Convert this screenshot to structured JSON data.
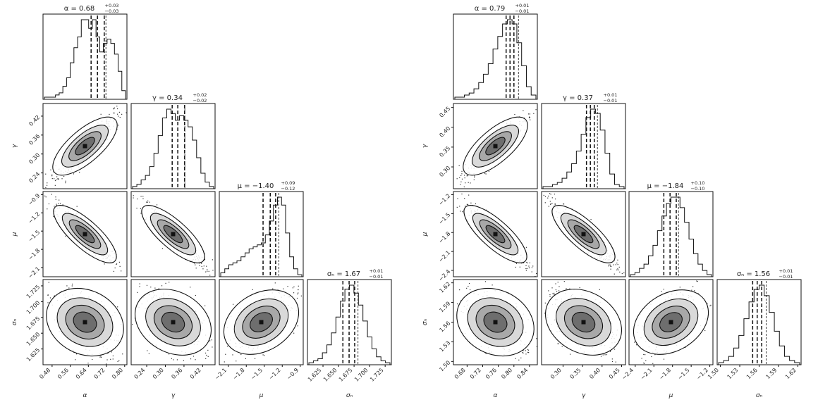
{
  "chart_data": [
    {
      "type": "corner",
      "name": "left",
      "params": [
        {
          "label": "α",
          "range": [
            0.44,
            0.81
          ],
          "ticks": [
            0.48,
            0.56,
            0.64,
            0.72,
            0.8
          ],
          "tick_labels": [
            "0.48",
            "0.56",
            "0.64",
            "0.72",
            "0.80"
          ],
          "median": 0.68,
          "quantiles": [
            0.652,
            0.68,
            0.71
          ],
          "title": {
            "text": "α = 0.68",
            "sup": "+0.03",
            "sub": "−0.03"
          },
          "hist": [
            1,
            1,
            1,
            2,
            3,
            6,
            10,
            17,
            24,
            29,
            37,
            37,
            33,
            37,
            29,
            22,
            26,
            28,
            26,
            21,
            13,
            4
          ]
        },
        {
          "label": "γ",
          "range": [
            0.19,
            0.46
          ],
          "ticks": [
            0.24,
            0.3,
            0.36,
            0.42
          ],
          "tick_labels": [
            "0.24",
            "0.30",
            "0.36",
            "0.42"
          ],
          "median": 0.34,
          "quantiles": [
            0.322,
            0.34,
            0.362
          ],
          "title": {
            "text": "γ = 0.34",
            "sup": "+0.02",
            "sub": "−0.02"
          },
          "hist": [
            1,
            2,
            4,
            6,
            10,
            16,
            24,
            32,
            36,
            34,
            31,
            33,
            31,
            28,
            22,
            14,
            7,
            3,
            1
          ]
        },
        {
          "label": "μ",
          "range": [
            -2.25,
            -0.85
          ],
          "ticks": [
            -2.1,
            -1.8,
            -1.5,
            -1.2,
            -0.9
          ],
          "tick_labels": [
            "−2.1",
            "−1.8",
            "−1.5",
            "−1.2",
            "−0.9"
          ],
          "median": -1.4,
          "quantiles": [
            -1.52,
            -1.4,
            -1.31
          ],
          "title": {
            "text": "μ = −1.40",
            "sup": "+0.09",
            "sub": "−0.12"
          },
          "hist": [
            2,
            4,
            6,
            7,
            8,
            10,
            12,
            14,
            15,
            16,
            17,
            21,
            28,
            36,
            40,
            36,
            22,
            10,
            4,
            1
          ]
        },
        {
          "label": "σₙ",
          "range": [
            1.6,
            1.735
          ],
          "ticks": [
            1.625,
            1.65,
            1.675,
            1.7,
            1.725
          ],
          "tick_labels": [
            "1.625",
            "1.650",
            "1.675",
            "1.700",
            "1.725"
          ],
          "median": 1.67,
          "quantiles": [
            1.657,
            1.667,
            1.676
          ],
          "title": {
            "text": "σₙ = 1.67",
            "sup": "+0.01",
            "sub": "−0.01"
          },
          "hist": [
            1,
            2,
            3,
            6,
            10,
            16,
            24,
            32,
            38,
            40,
            36,
            30,
            22,
            14,
            8,
            4,
            2,
            1
          ]
        }
      ]
    },
    {
      "type": "corner",
      "name": "right",
      "params": [
        {
          "label": "α",
          "range": [
            0.645,
            0.86
          ],
          "ticks": [
            0.68,
            0.72,
            0.76,
            0.8,
            0.84
          ],
          "tick_labels": [
            "0.68",
            "0.72",
            "0.76",
            "0.80",
            "0.84"
          ],
          "median": 0.79,
          "quantiles": [
            0.78,
            0.79,
            0.8
          ],
          "title": {
            "text": "α = 0.79",
            "sup": "+0.01",
            "sub": "−0.01"
          },
          "hist": [
            1,
            1,
            2,
            3,
            5,
            8,
            12,
            17,
            24,
            30,
            36,
            38,
            36,
            27,
            16,
            6,
            2
          ]
        },
        {
          "label": "γ",
          "range": [
            0.245,
            0.46
          ],
          "ticks": [
            0.3,
            0.35,
            0.4,
            0.45
          ],
          "tick_labels": [
            "0.30",
            "0.35",
            "0.40",
            "0.45"
          ],
          "median": 0.37,
          "quantiles": [
            0.36,
            0.37,
            0.38
          ],
          "title": {
            "text": "γ = 0.37",
            "sup": "+0.01",
            "sub": "−0.01"
          },
          "hist": [
            1,
            1,
            2,
            3,
            5,
            8,
            12,
            18,
            26,
            34,
            38,
            36,
            28,
            17,
            7,
            2,
            1
          ]
        },
        {
          "label": "μ",
          "range": [
            -2.5,
            -1.15
          ],
          "ticks": [
            -2.4,
            -2.1,
            -1.8,
            -1.5,
            -1.2
          ],
          "tick_labels": [
            "−2.4",
            "−2.1",
            "−1.8",
            "−1.5",
            "−1.2"
          ],
          "median": -1.84,
          "quantiles": [
            -1.94,
            -1.84,
            -1.74
          ],
          "title": {
            "text": "μ = −1.84",
            "sup": "+0.10",
            "sub": "−0.10"
          },
          "hist": [
            1,
            2,
            4,
            6,
            10,
            15,
            22,
            29,
            35,
            38,
            38,
            33,
            26,
            18,
            11,
            6,
            3,
            1
          ]
        },
        {
          "label": "σₙ",
          "range": [
            1.495,
            1.625
          ],
          "ticks": [
            1.5,
            1.53,
            1.56,
            1.59,
            1.62
          ],
          "tick_labels": [
            "1.50",
            "1.53",
            "1.56",
            "1.59",
            "1.62"
          ],
          "median": 1.56,
          "quantiles": [
            1.55,
            1.557,
            1.564
          ],
          "title": {
            "text": "σₙ = 1.56",
            "sup": "+0.01",
            "sub": "−0.01"
          },
          "hist": [
            1,
            2,
            4,
            8,
            14,
            22,
            30,
            36,
            38,
            33,
            25,
            16,
            9,
            4,
            2,
            1
          ]
        }
      ]
    }
  ]
}
